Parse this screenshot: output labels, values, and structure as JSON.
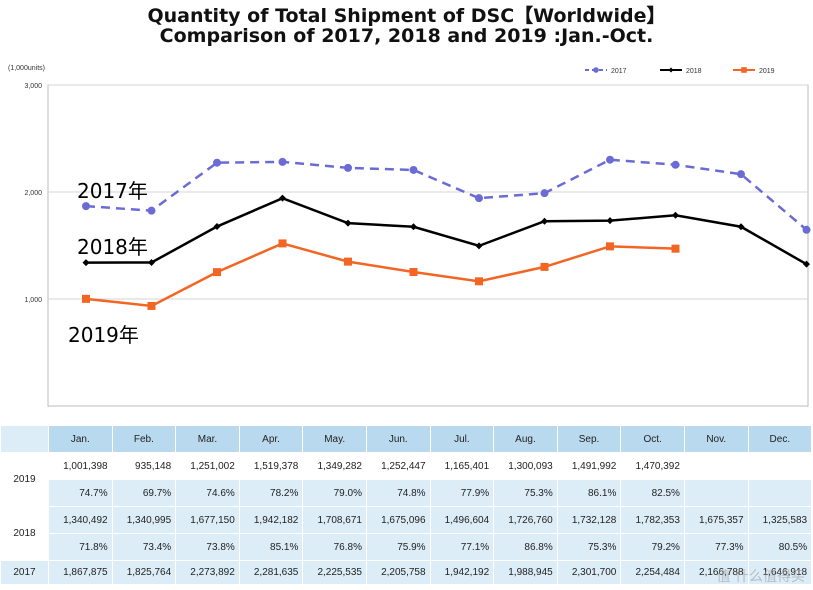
{
  "chart_data": {
    "type": "line",
    "title": "Quantity of Total Shipment of DSC【Worldwide】",
    "subtitle": "Comparison of 2017, 2018 and 2019 :Jan.-Oct.",
    "ylabel": "(1,000units)",
    "ylim": [
      0,
      3000
    ],
    "yticks": [
      "3,000",
      "2,000",
      "1,000"
    ],
    "ytick_values": [
      3000,
      2000,
      1000
    ],
    "categories": [
      "Jan.",
      "Feb.",
      "Mar.",
      "Apr.",
      "May.",
      "Jun.",
      "Jul.",
      "Aug.",
      "Sep.",
      "Oct.",
      "Nov.",
      "Dec."
    ],
    "legend": [
      "2017",
      "2018",
      "2019"
    ],
    "legend_position": "top-right",
    "series": [
      {
        "name": "2017",
        "color": "#6b6bd6",
        "style": "dashed-circle",
        "values": [
          1867.875,
          1825.764,
          2273.892,
          2281.635,
          2225.535,
          2205.758,
          1942.192,
          1988.945,
          2301.7,
          2254.484,
          2166.788,
          1646.918
        ]
      },
      {
        "name": "2018",
        "color": "#000000",
        "style": "solid-diamond",
        "values": [
          1340.492,
          1340.995,
          1677.15,
          1942.182,
          1708.671,
          1675.096,
          1496.604,
          1726.76,
          1732.128,
          1782.353,
          1675.357,
          1325.583
        ]
      },
      {
        "name": "2019",
        "color": "#f26522",
        "style": "solid-square",
        "values": [
          1001.398,
          935.148,
          1251.002,
          1519.378,
          1349.282,
          1252.447,
          1165.401,
          1300.093,
          1491.992,
          1470.392,
          null,
          null
        ]
      }
    ],
    "annotations": [
      "2017年",
      "2018年",
      "2019年"
    ]
  },
  "table": {
    "months": [
      "Jan.",
      "Feb.",
      "Mar.",
      "Apr.",
      "May.",
      "Jun.",
      "Jul.",
      "Aug.",
      "Sep.",
      "Oct.",
      "Nov.",
      "Dec."
    ],
    "rows": [
      {
        "year": "2019",
        "values": [
          "1,001,398",
          "935,148",
          "1,251,002",
          "1,519,378",
          "1,349,282",
          "1,252,447",
          "1,165,401",
          "1,300,093",
          "1,491,992",
          "1,470,392",
          "",
          ""
        ],
        "pcts": [
          "74.7%",
          "69.7%",
          "74.6%",
          "78.2%",
          "79.0%",
          "74.8%",
          "77.9%",
          "75.3%",
          "86.1%",
          "82.5%",
          "",
          ""
        ]
      },
      {
        "year": "2018",
        "values": [
          "1,340,492",
          "1,340,995",
          "1,677,150",
          "1,942,182",
          "1,708,671",
          "1,675,096",
          "1,496,604",
          "1,726,760",
          "1,732,128",
          "1,782,353",
          "1,675,357",
          "1,325,583"
        ],
        "pcts": [
          "71.8%",
          "73.4%",
          "73.8%",
          "85.1%",
          "76.8%",
          "75.9%",
          "77.1%",
          "86.8%",
          "75.3%",
          "79.2%",
          "77.3%",
          "80.5%"
        ]
      },
      {
        "year": "2017",
        "values": [
          "1,867,875",
          "1,825,764",
          "2,273,892",
          "2,281,635",
          "2,225,535",
          "2,205,758",
          "1,942,192",
          "1,988,945",
          "2,301,700",
          "2,254,484",
          "2,166,788",
          "1,646,918"
        ]
      }
    ]
  },
  "watermark": "值 什么值得买"
}
